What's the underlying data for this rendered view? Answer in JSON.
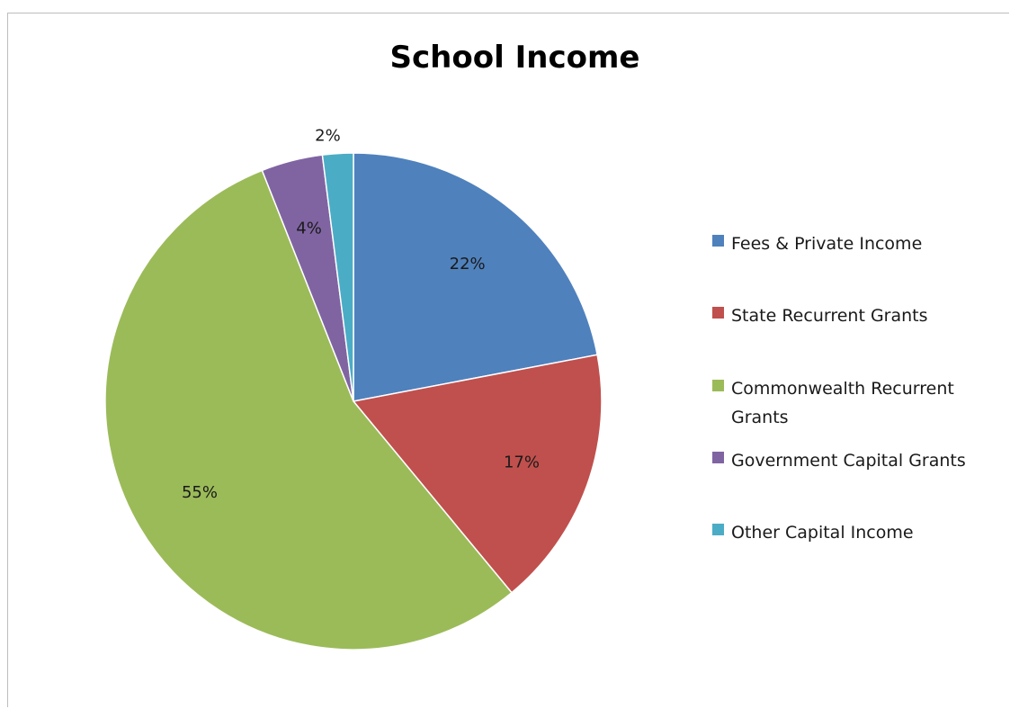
{
  "chart_data": {
    "type": "pie",
    "title": "School Income",
    "legend_position": "right",
    "start_angle_deg": 0,
    "direction": "clockwise",
    "slices": [
      {
        "label": "Fees & Private Income",
        "value": 22,
        "value_label": "22%",
        "color": "#4F81BD"
      },
      {
        "label": "State Recurrent Grants",
        "value": 17,
        "value_label": "17%",
        "color": "#C0504D"
      },
      {
        "label": "Commonwealth Recurrent Grants",
        "value": 55,
        "value_label": "55%",
        "color": "#9BBB59"
      },
      {
        "label": "Government Capital Grants",
        "value": 4,
        "value_label": "4%",
        "color": "#8064A2"
      },
      {
        "label": "Other Capital Income",
        "value": 2,
        "value_label": "2%",
        "color": "#4BACC6"
      }
    ]
  }
}
